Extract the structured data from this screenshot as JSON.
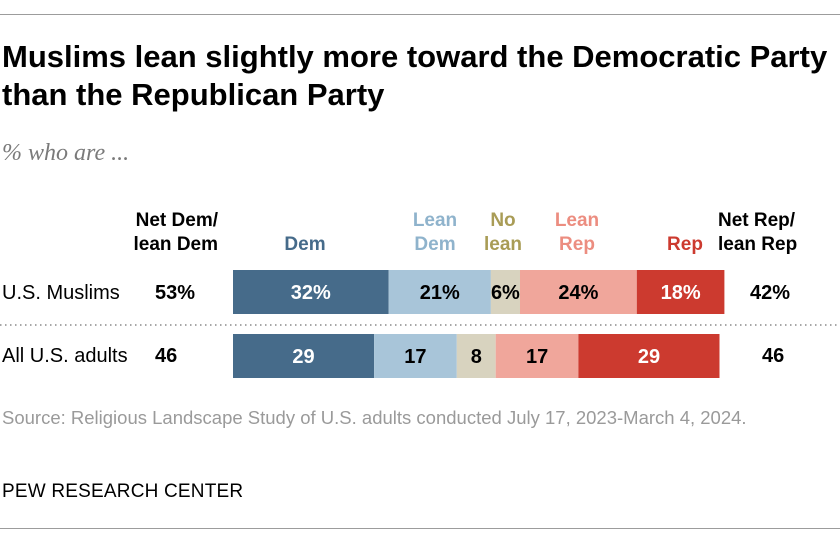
{
  "title": "Muslims lean slightly more toward the Democratic Party than the Republican Party",
  "subtitle": "% who are ...",
  "colors": {
    "dem": "#466b8a",
    "lean_dem": "#a8c5d9",
    "no_lean": "#d8d3bf",
    "lean_rep": "#f0a69b",
    "rep": "#cc3a2f",
    "lean_dem_header": "#8fb3cc",
    "no_lean_header": "#a99c56",
    "lean_rep_header": "#ec8d80"
  },
  "column_headers": {
    "net_dem": [
      "Net Dem/",
      "lean Dem"
    ],
    "dem": "Dem",
    "lean_dem": [
      "Lean",
      "Dem"
    ],
    "no_lean": [
      "No",
      "lean"
    ],
    "lean_rep": [
      "Lean",
      "Rep"
    ],
    "rep": "Rep",
    "net_rep": [
      "Net Rep/",
      "lean Rep"
    ]
  },
  "chart_data": {
    "type": "bar",
    "orientation": "horizontal-stacked",
    "title": "Muslims lean slightly more toward the Democratic Party than the Republican Party",
    "subtitle": "% who are ...",
    "categories": [
      "U.S. Muslims",
      "All U.S. adults"
    ],
    "series": [
      {
        "name": "Dem",
        "key": "dem",
        "values": [
          32,
          29
        ],
        "labels": [
          "32%",
          "29"
        ]
      },
      {
        "name": "Lean Dem",
        "key": "lean_dem",
        "values": [
          21,
          17
        ],
        "labels": [
          "21%",
          "17"
        ]
      },
      {
        "name": "No lean",
        "key": "no_lean",
        "values": [
          6,
          8
        ],
        "labels": [
          "6%",
          "8"
        ]
      },
      {
        "name": "Lean Rep",
        "key": "lean_rep",
        "values": [
          24,
          17
        ],
        "labels": [
          "24%",
          "17"
        ]
      },
      {
        "name": "Rep",
        "key": "rep",
        "values": [
          18,
          29
        ],
        "labels": [
          "18%",
          "29"
        ]
      }
    ],
    "net_dem": {
      "values": [
        53,
        46
      ],
      "labels": [
        "53%",
        "46"
      ]
    },
    "net_rep": {
      "values": [
        42,
        46
      ],
      "labels": [
        "42%",
        "46"
      ]
    },
    "xlim": [
      0,
      100
    ]
  },
  "source": "Source: Religious Landscape Study of U.S. adults conducted July 17, 2023-March 4, 2024.",
  "brand": "PEW RESEARCH CENTER"
}
